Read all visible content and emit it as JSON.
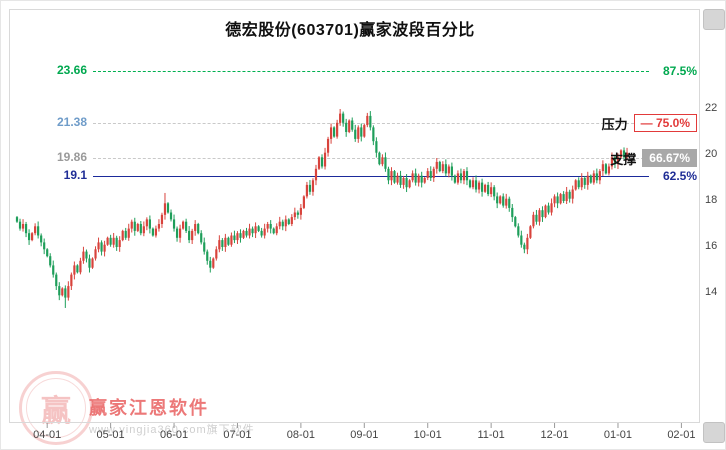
{
  "window": {
    "title": "德宏股份(603701)赢家波段百分比"
  },
  "watermark": {
    "brand": "赢家江恩软件",
    "url": "www.yingjia360.com旗下软件",
    "logo_char": "赢"
  },
  "chart_data": {
    "type": "candlestick",
    "title": "德宏股份(603701)赢家波段百分比",
    "x_ticks": [
      "04-01",
      "05-01",
      "06-01",
      "07-01",
      "08-01",
      "09-01",
      "10-01",
      "11-01",
      "12-01",
      "01-01",
      "02-01"
    ],
    "y_ticks": [
      22,
      20,
      18,
      16,
      14
    ],
    "ylim": [
      13,
      24
    ],
    "legend_position": "none",
    "grid": false,
    "levels": [
      {
        "value": "23.66",
        "num": 23.66,
        "percent": "87.5%",
        "role": "",
        "kind": "fib-green"
      },
      {
        "value": "21.38",
        "num": 21.38,
        "percent": "75.0%",
        "role": "压力",
        "kind": "pressure"
      },
      {
        "value": "19.86",
        "num": 19.86,
        "percent": "66.67%",
        "role": "支撑",
        "kind": "support"
      },
      {
        "value": "19.1",
        "num": 19.1,
        "percent": "62.5%",
        "role": "",
        "kind": "navy"
      }
    ],
    "closes": [
      17.1,
      16.8,
      17.0,
      16.6,
      16.3,
      16.6,
      16.9,
      16.5,
      16.2,
      15.9,
      15.6,
      15.2,
      14.8,
      14.3,
      13.9,
      14.2,
      13.8,
      14.3,
      14.8,
      15.2,
      14.9,
      15.4,
      15.8,
      15.5,
      15.1,
      15.5,
      15.9,
      16.2,
      15.8,
      16.1,
      16.4,
      16.1,
      16.4,
      16.0,
      16.3,
      16.7,
      16.4,
      16.8,
      17.1,
      16.7,
      17.0,
      16.6,
      16.9,
      17.2,
      16.8,
      16.5,
      16.8,
      17.0,
      17.4,
      17.9,
      17.5,
      17.2,
      16.8,
      16.4,
      16.8,
      17.1,
      16.7,
      16.3,
      16.7,
      17.0,
      16.6,
      16.2,
      15.8,
      15.4,
      15.1,
      15.5,
      15.9,
      16.3,
      16.0,
      16.4,
      16.1,
      16.5,
      16.3,
      16.6,
      16.4,
      16.7,
      16.5,
      16.8,
      16.6,
      16.9,
      16.7,
      16.5,
      16.8,
      17.0,
      16.8,
      16.6,
      16.9,
      17.1,
      16.9,
      17.2,
      17.0,
      17.3,
      17.5,
      17.4,
      17.7,
      18.2,
      18.7,
      18.4,
      18.9,
      19.4,
      19.9,
      19.5,
      20.1,
      20.7,
      21.2,
      20.8,
      21.4,
      21.8,
      21.4,
      21.0,
      21.5,
      21.1,
      20.7,
      21.2,
      20.8,
      21.3,
      21.7,
      21.2,
      20.6,
      20.1,
      19.6,
      19.9,
      19.4,
      18.9,
      19.3,
      18.8,
      19.1,
      18.7,
      19.0,
      18.6,
      18.9,
      19.2,
      18.8,
      19.1,
      18.8,
      19.0,
      19.3,
      19.0,
      19.4,
      19.7,
      19.3,
      19.6,
      19.2,
      19.5,
      19.1,
      18.8,
      19.2,
      18.9,
      19.3,
      18.9,
      18.6,
      18.9,
      18.5,
      18.8,
      18.4,
      18.7,
      18.3,
      18.6,
      18.2,
      17.9,
      18.2,
      17.8,
      18.1,
      17.7,
      17.3,
      16.9,
      16.5,
      16.1,
      15.9,
      16.4,
      16.9,
      17.4,
      17.1,
      17.6,
      17.3,
      17.8,
      17.5,
      17.9,
      18.2,
      17.9,
      18.3,
      18.0,
      18.4,
      18.1,
      18.5,
      18.9,
      18.6,
      19.0,
      18.7,
      19.1,
      18.8,
      19.2,
      18.9,
      19.3,
      19.6,
      19.2,
      19.5,
      19.9,
      19.6,
      19.9,
      20.2,
      19.9,
      20.1
    ],
    "wick_overrides": {
      "high": {
        "49": 18.35,
        "107": 22.0
      },
      "low": {
        "16": 13.35
      }
    },
    "colors": {
      "up": "#d8433c",
      "down": "#1e9e5a",
      "fib_green": "#00b050",
      "navy": "#1b2a9b",
      "pressure_red": "#e23a3a",
      "support_gray": "#a8a8a8",
      "level_blue": "#6f9cc9",
      "level_gray": "#9a9a9a"
    }
  }
}
